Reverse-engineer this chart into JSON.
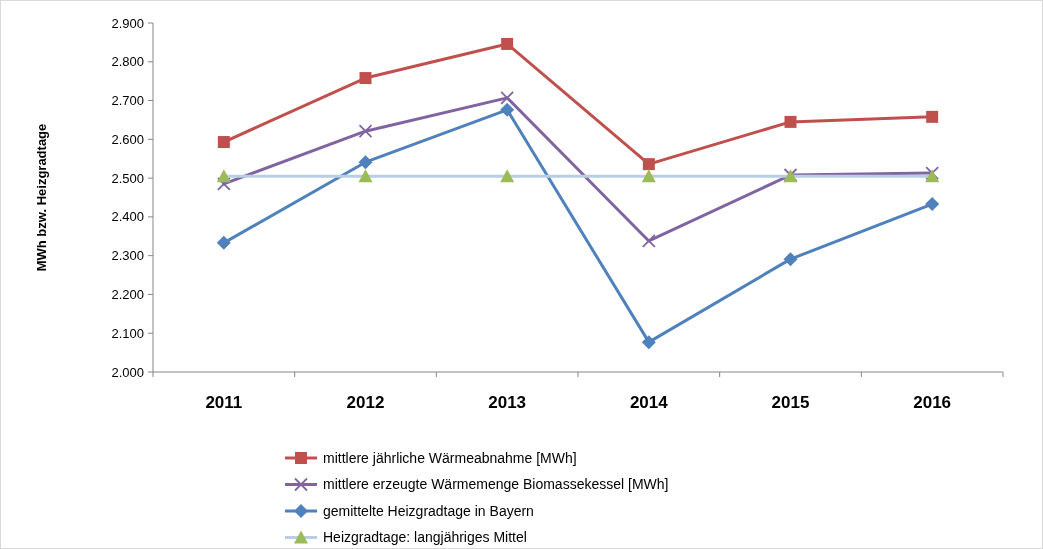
{
  "chart_data": {
    "type": "line",
    "ylabel": "MWh bzw. Heizgradtage",
    "categories": [
      "2011",
      "2012",
      "2013",
      "2014",
      "2015",
      "2016"
    ],
    "ylim": [
      2000,
      2900
    ],
    "yticks": [
      {
        "value": 2000,
        "label": "2.000"
      },
      {
        "value": 2100,
        "label": "2.100"
      },
      {
        "value": 2200,
        "label": "2.200"
      },
      {
        "value": 2300,
        "label": "2.300"
      },
      {
        "value": 2400,
        "label": "2.400"
      },
      {
        "value": 2500,
        "label": "2.500"
      },
      {
        "value": 2600,
        "label": "2.600"
      },
      {
        "value": 2700,
        "label": "2.700"
      },
      {
        "value": 2800,
        "label": "2.800"
      },
      {
        "value": 2900,
        "label": "2.900"
      }
    ],
    "grid": false,
    "legend": "bottom",
    "line_style": "solid",
    "series": [
      {
        "name": "mittlere jährliche Wärmeabnahme [MWh]",
        "color": "#c0504d",
        "marker": "square",
        "values": [
          2593,
          2758,
          2846,
          2536,
          2645,
          2658
        ]
      },
      {
        "name": "mittlere erzeugte Wärmemenge Biomassekessel [MWh]",
        "color": "#8064a2",
        "marker": "cross",
        "values": [
          2485,
          2621,
          2707,
          2338,
          2508,
          2513
        ]
      },
      {
        "name": "gemittelte Heizgradtage in Bayern",
        "color": "#4f81bd",
        "marker": "diamond",
        "values": [
          2333,
          2541,
          2676,
          2077,
          2291,
          2433
        ]
      },
      {
        "name": "Heizgradtage: langjähriges Mittel",
        "color": "#b9cde5",
        "colors": [
          "#9bbb59",
          "#9bbb59",
          "#9bbb59",
          "#9bbb59",
          "#9bbb59",
          "#9bbb59"
        ],
        "marker": "triangle",
        "values": [
          2505,
          2505,
          2505,
          2505,
          2505,
          2505
        ]
      }
    ]
  }
}
